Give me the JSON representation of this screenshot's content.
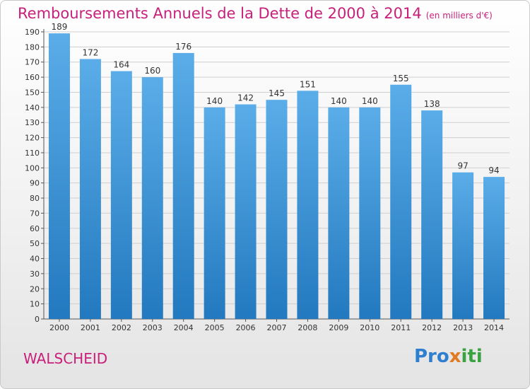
{
  "header": {
    "title": "Remboursements Annuels de la Dette de 2000 à 2014",
    "subtitle": "(en milliers d'€)"
  },
  "footer": {
    "place": "WALSCHEID",
    "logo_a": "Pro",
    "logo_b": "x",
    "logo_c": "iti"
  },
  "colors": {
    "title": "#c8207a",
    "bar_top": "#5aade8",
    "bar_bottom": "#2379bf",
    "grid": "#cfcfcf"
  },
  "chart_data": {
    "type": "bar",
    "title": "Remboursements Annuels de la Dette de 2000 à 2014",
    "xlabel": "",
    "ylabel": "",
    "categories": [
      "2000",
      "2001",
      "2002",
      "2003",
      "2004",
      "2005",
      "2006",
      "2007",
      "2008",
      "2009",
      "2010",
      "2011",
      "2012",
      "2013",
      "2014"
    ],
    "values": [
      189,
      172,
      164,
      160,
      176,
      140,
      142,
      145,
      151,
      140,
      140,
      155,
      138,
      97,
      94
    ],
    "ylim": [
      0,
      190
    ],
    "yticks": [
      0,
      10,
      20,
      30,
      40,
      50,
      60,
      70,
      80,
      90,
      100,
      110,
      120,
      130,
      140,
      150,
      160,
      170,
      180,
      190
    ],
    "grid": true,
    "legend": "none"
  }
}
